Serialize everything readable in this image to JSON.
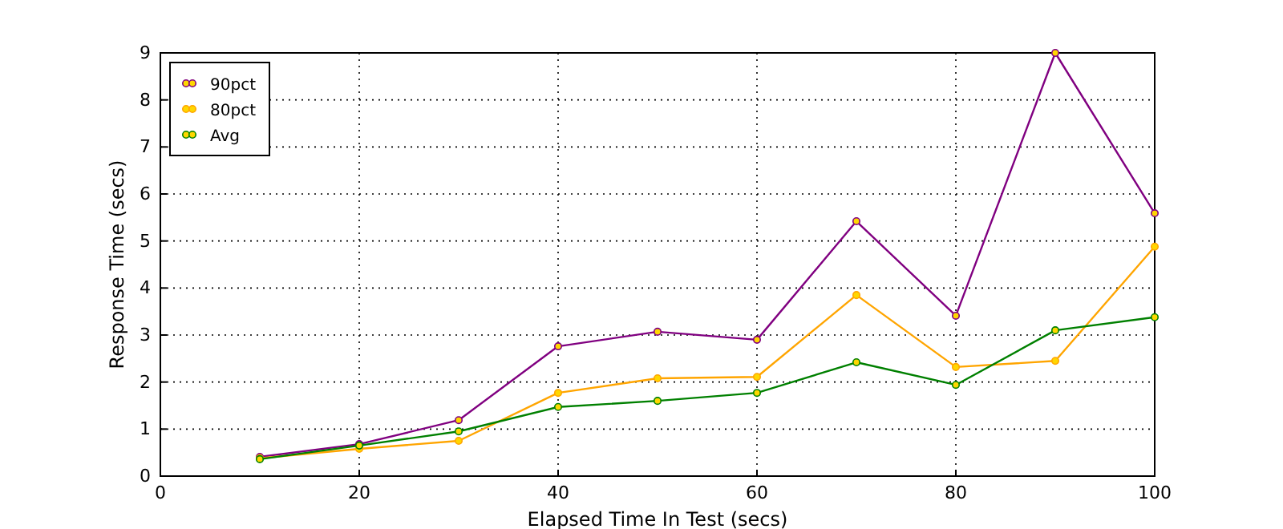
{
  "chart_data": {
    "type": "line",
    "xlabel": "Elapsed Time In Test (secs)",
    "ylabel": "Response Time (secs)",
    "x": [
      10,
      20,
      30,
      40,
      50,
      60,
      70,
      80,
      90,
      100
    ],
    "series": [
      {
        "name": "90pct",
        "color": "#800080",
        "values": [
          0.41,
          0.68,
          1.19,
          2.76,
          3.07,
          2.9,
          5.42,
          3.41,
          9.0,
          5.59
        ]
      },
      {
        "name": "80pct",
        "color": "#ffa500",
        "values": [
          0.38,
          0.58,
          0.75,
          1.77,
          2.08,
          2.11,
          3.85,
          2.32,
          2.45,
          4.88
        ]
      },
      {
        "name": "Avg",
        "color": "#008000",
        "values": [
          0.36,
          0.65,
          0.95,
          1.47,
          1.6,
          1.77,
          2.42,
          1.94,
          3.1,
          3.38
        ]
      }
    ],
    "xlim": [
      0,
      100
    ],
    "xticks": [
      0,
      20,
      40,
      60,
      80,
      100
    ],
    "ylim": [
      0,
      9
    ],
    "yticks": [
      0,
      1,
      2,
      3,
      4,
      5,
      6,
      7,
      8,
      9
    ],
    "grid": true,
    "legend": "top left",
    "marker": "circle",
    "line_style": "solid"
  }
}
